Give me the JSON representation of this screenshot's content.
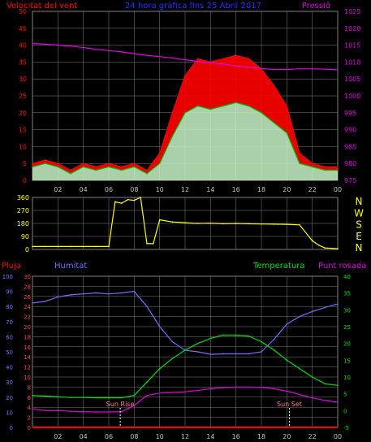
{
  "header": {
    "left_title": "Velocitat del vent",
    "center_title": "24 hora gràfica fins 25 Abril 2017",
    "right_title": "Pressió"
  },
  "colors": {
    "background": "#000000",
    "axis_gray": "#808080",
    "wind_gust": "#ff0000",
    "wind_avg": "#00c000",
    "wind_fill": "#c8f5c8",
    "pressure": "#e000e0",
    "direction": "#ffff00",
    "rain": "#ff0000",
    "humidity": "#7070ff",
    "temperature": "#00e000",
    "dewpoint": "#e000e0",
    "sun_labels": "#ff8080",
    "compass_labels": "#ffff00"
  },
  "chart_data": [
    {
      "id": "wind",
      "type": "line",
      "title": "Velocitat del vent",
      "right_axis_title": "Pressió",
      "x_tick_labels": [
        "02",
        "04",
        "06",
        "08",
        "10",
        "12",
        "14",
        "16",
        "18",
        "20",
        "22",
        "00"
      ],
      "left_ticks": [
        "0",
        "5",
        "10",
        "15",
        "20",
        "25",
        "30",
        "35",
        "40",
        "45",
        "50"
      ],
      "right_ticks": [
        "975",
        "980",
        "985",
        "990",
        "995",
        "1000",
        "1005",
        "1010",
        "1015",
        "1020",
        "1025"
      ],
      "ylim": [
        0,
        50
      ],
      "y2lim": [
        975,
        1025
      ],
      "x_hours": [
        0,
        1,
        2,
        3,
        4,
        5,
        6,
        7,
        8,
        9,
        10,
        11,
        12,
        13,
        14,
        15,
        16,
        17,
        18,
        19,
        20,
        21,
        22,
        23,
        24
      ],
      "series": [
        {
          "key": "gust",
          "values": [
            5,
            6,
            5,
            3,
            5,
            4,
            5,
            4,
            5,
            3,
            8,
            20,
            31,
            36,
            35,
            36,
            37,
            36,
            33,
            28,
            22,
            8,
            5,
            4,
            4
          ]
        },
        {
          "key": "avg",
          "values": [
            4,
            5,
            4,
            2,
            4,
            3,
            4,
            3,
            4,
            2,
            5,
            13,
            20,
            22,
            21,
            22,
            23,
            22,
            20,
            17,
            14,
            5,
            4,
            3,
            3
          ]
        },
        {
          "key": "pressure",
          "axis": "right",
          "values": [
            1015.5,
            1015.3,
            1015,
            1014.7,
            1014.3,
            1013.8,
            1013.4,
            1013,
            1012.5,
            1012,
            1011.6,
            1011.2,
            1010.7,
            1010.2,
            1009.8,
            1009.4,
            1008.9,
            1008.5,
            1008.1,
            1007.8,
            1007.8,
            1008,
            1008,
            1007.9,
            1007.7
          ]
        }
      ]
    },
    {
      "id": "direction",
      "type": "line",
      "left_ticks": [
        "0",
        "90",
        "180",
        "270",
        "360"
      ],
      "compass_labels": [
        "N",
        "W",
        "S",
        "E",
        "N"
      ],
      "ylim": [
        0,
        360
      ],
      "x_hours": [
        0,
        1,
        2,
        3,
        4,
        5,
        6,
        6.5,
        7,
        7.5,
        8,
        8.5,
        9,
        9.5,
        10,
        11,
        12,
        13,
        14,
        15,
        16,
        17,
        18,
        19,
        20,
        21,
        22,
        22.5,
        23,
        24
      ],
      "series": [
        {
          "key": "direction",
          "values": [
            20,
            20,
            20,
            20,
            20,
            20,
            20,
            330,
            320,
            345,
            340,
            360,
            40,
            40,
            205,
            190,
            185,
            180,
            182,
            178,
            180,
            178,
            176,
            175,
            174,
            170,
            60,
            30,
            10,
            5
          ]
        }
      ]
    },
    {
      "id": "temp_hum",
      "type": "line",
      "titles": {
        "rain": "Pluja",
        "humidity": "Humitat",
        "temperature": "Temperatura",
        "dewpoint": "Punt rosada"
      },
      "annotations": [
        "Sun Rise",
        "Sun Set"
      ],
      "annotation_hours": [
        6.9,
        20.2
      ],
      "x_tick_labels": [
        "02",
        "04",
        "06",
        "08",
        "10",
        "12",
        "14",
        "16",
        "18",
        "20",
        "22",
        "00"
      ],
      "rain_ticks": [
        "0",
        "10",
        "20",
        "30",
        "40",
        "50",
        "60",
        "70",
        "80",
        "90",
        "100"
      ],
      "humidity_ticks": [
        "0",
        "2",
        "4",
        "6",
        "8",
        "10",
        "12",
        "14",
        "16",
        "18",
        "20",
        "22",
        "24",
        "26",
        "28",
        "30"
      ],
      "temp_ticks": [
        "-5",
        "0",
        "5",
        "10",
        "15",
        "20",
        "25",
        "30",
        "35",
        "40"
      ],
      "humidity_ylim": [
        0,
        30
      ],
      "temp_ylim": [
        -5,
        40
      ],
      "rain_ylim": [
        0,
        100
      ],
      "x_hours": [
        0,
        1,
        2,
        3,
        4,
        5,
        6,
        7,
        8,
        9,
        10,
        11,
        12,
        13,
        14,
        15,
        16,
        17,
        18,
        19,
        20,
        21,
        22,
        23,
        24
      ],
      "series": [
        {
          "key": "rain",
          "axis": "rain",
          "values": [
            0,
            0,
            0,
            0,
            0,
            0,
            0,
            0,
            0,
            0,
            0,
            0,
            0,
            0,
            0,
            0,
            0,
            0,
            0,
            0,
            0,
            0,
            0,
            0,
            0
          ]
        },
        {
          "key": "humidity",
          "axis": "humidity",
          "values": [
            24.7,
            25,
            25.9,
            26.3,
            26.5,
            26.7,
            26.5,
            26.7,
            27,
            24,
            20,
            17,
            15.3,
            15,
            14.5,
            14.6,
            14.6,
            14.6,
            15,
            17.5,
            20.5,
            22,
            23,
            23.8,
            24.5
          ]
        },
        {
          "key": "temperature",
          "axis": "temp",
          "values": [
            4.5,
            4.3,
            4.1,
            3.9,
            3.9,
            3.8,
            3.8,
            3.8,
            4.5,
            8.5,
            12.5,
            15.5,
            18,
            20,
            21.5,
            22.5,
            22.5,
            22.2,
            20.5,
            18,
            15,
            12.5,
            10,
            8,
            7.5
          ]
        },
        {
          "key": "dewpoint",
          "axis": "temp",
          "values": [
            0.5,
            0,
            0,
            -0.2,
            -0.3,
            -0.4,
            -0.4,
            -0.3,
            1.5,
            4.5,
            5.2,
            5.4,
            5.6,
            6,
            6.5,
            6.8,
            7,
            7,
            6.9,
            6.5,
            5.8,
            4.8,
            3.8,
            3,
            2.5
          ]
        }
      ]
    }
  ]
}
